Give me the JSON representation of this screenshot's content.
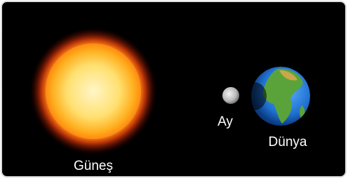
{
  "nodes": [
    {
      "label": "Güneş"
    },
    {
      "label": "Ay"
    },
    {
      "label": "Dünya"
    }
  ]
}
